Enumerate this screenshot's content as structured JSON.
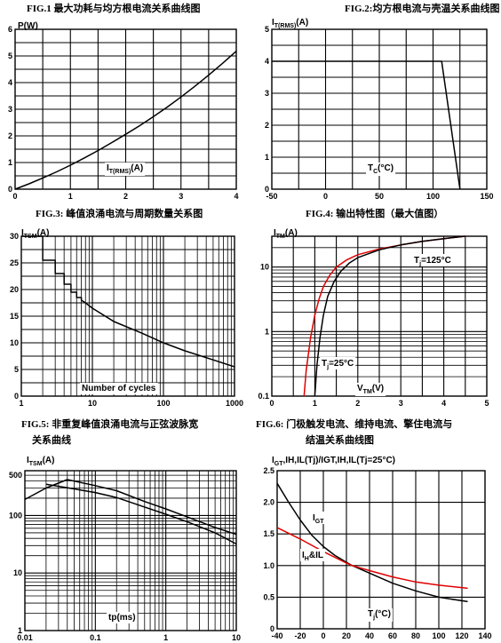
{
  "chart_data": [
    {
      "id": "fig1",
      "type": "line",
      "title": "FIG.1  最大功耗与均方根电流关系曲线图",
      "ylabel": "P(W)",
      "xlabel": "IT(RMS)(A)",
      "ylabel_main": "P",
      "ylabel_sub": "",
      "ylabel_tail": "(W)",
      "xlabel_main": "I",
      "xlabel_sub": "T(RMS)",
      "xlabel_tail": "(A)",
      "xscale": "linear",
      "yscale": "linear",
      "xlim": [
        0,
        4
      ],
      "ylim": [
        0,
        6
      ],
      "xticks": [
        0,
        1,
        2,
        3,
        4
      ],
      "yticks": [
        0,
        1,
        2,
        3,
        4,
        5,
        6
      ],
      "xticklabels": [
        "0",
        "1",
        "2",
        "3",
        "4"
      ],
      "yticklabels": [
        "0",
        "1",
        "2",
        "3",
        "4",
        "5",
        "6"
      ],
      "xgrid": [
        0.5,
        1,
        1.5,
        2,
        2.5,
        3,
        3.5
      ],
      "ygrid": [
        0.5,
        1,
        1.5,
        2,
        2.5,
        3,
        3.5,
        4,
        4.5,
        5,
        5.5
      ],
      "series": [
        {
          "name": "",
          "color": "#000000",
          "x": [
            0,
            0.25,
            0.5,
            0.75,
            1,
            1.25,
            1.5,
            1.75,
            2,
            2.25,
            2.5,
            2.75,
            3,
            3.25,
            3.5,
            3.75,
            4
          ],
          "y": [
            0,
            0.2,
            0.42,
            0.65,
            0.9,
            1.17,
            1.45,
            1.75,
            2.06,
            2.38,
            2.72,
            3.08,
            3.46,
            3.86,
            4.28,
            4.72,
            5.18
          ]
        }
      ]
    },
    {
      "id": "fig2",
      "type": "line",
      "title": "FIG.2:均方根电流与壳温关系曲线图",
      "ylabel": "IT(RMS)(A)",
      "xlabel": "TC(°C)",
      "ylabel_main": "I",
      "ylabel_sub": "T(RMS)",
      "ylabel_tail": "(A)",
      "xlabel_main": "T",
      "xlabel_sub": "C",
      "xlabel_tail": "(°C)",
      "xscale": "linear",
      "yscale": "linear",
      "xlim": [
        -50,
        150
      ],
      "ylim": [
        0,
        5
      ],
      "xticks": [
        -50,
        0,
        50,
        100,
        150
      ],
      "yticks": [
        0,
        1,
        2,
        3,
        4,
        5
      ],
      "xticklabels": [
        "-50",
        "0",
        "50",
        "100",
        "150"
      ],
      "yticklabels": [
        "0",
        "1",
        "2",
        "3",
        "4",
        "5"
      ],
      "xgrid": [
        -25,
        0,
        25,
        50,
        75,
        100,
        125
      ],
      "ygrid": [
        0.5,
        1,
        1.5,
        2,
        2.5,
        3,
        3.5,
        4,
        4.5
      ],
      "series": [
        {
          "name": "",
          "color": "#000000",
          "x": [
            -50,
            108,
            125
          ],
          "y": [
            4,
            4,
            0
          ]
        }
      ]
    },
    {
      "id": "fig3",
      "type": "line",
      "title": "FIG.3:  峰值浪涌电流与周期数量关系图",
      "ylabel": "ITSM(A)",
      "xlabel": "Number of cycles",
      "ylabel_main": "I",
      "ylabel_sub": "TSM",
      "ylabel_tail": "(A)",
      "xlabel_main": "Number of cycles",
      "xlabel_sub": "",
      "xlabel_tail": "",
      "xscale": "log",
      "yscale": "linear",
      "xlim": [
        1,
        1000
      ],
      "ylim": [
        0,
        30
      ],
      "xticks": [
        1,
        10,
        100,
        1000
      ],
      "yticks": [
        0,
        5,
        10,
        15,
        20,
        25,
        30
      ],
      "xticklabels": [
        "1",
        "10",
        "100",
        "1000"
      ],
      "yticklabels": [
        "0",
        "5",
        "10",
        "15",
        "20",
        "25",
        "30"
      ],
      "xgrid": "log-decades",
      "ygrid": [
        2.5,
        5,
        7.5,
        10,
        12.5,
        15,
        17.5,
        20,
        22.5,
        25,
        27.5
      ],
      "series": [
        {
          "name": "",
          "color": "#000000",
          "x": [
            1,
            2,
            2,
            3,
            3,
            4,
            4,
            5,
            5,
            6,
            6,
            7,
            7,
            8,
            10,
            20,
            50,
            100,
            200,
            500,
            1000
          ],
          "y": [
            30,
            30,
            25.5,
            25.5,
            23,
            23,
            21,
            21,
            19.5,
            19.5,
            18.5,
            18.5,
            18,
            17.5,
            16.5,
            14,
            11.8,
            10,
            8.5,
            6.8,
            5.5
          ]
        }
      ]
    },
    {
      "id": "fig4",
      "type": "line",
      "title": "FIG.4:  输出特性图（最大值图）",
      "ylabel": "ITM(A)",
      "xlabel": "VTM(V)",
      "ylabel_main": "I",
      "ylabel_sub": "TM",
      "ylabel_tail": "(A)",
      "xlabel_main": "V",
      "xlabel_sub": "TM",
      "xlabel_tail": "(V)",
      "xscale": "linear",
      "yscale": "log",
      "xlim": [
        0,
        5
      ],
      "ylim": [
        0.1,
        30
      ],
      "xticks": [
        0,
        1,
        2,
        3,
        4,
        5
      ],
      "yticks": [
        0.1,
        1,
        10
      ],
      "xticklabels": [
        "0",
        "1",
        "2",
        "3",
        "4",
        "5"
      ],
      "yticklabels": [
        "0.1",
        "1",
        "10"
      ],
      "xgrid": [
        0.5,
        1,
        1.5,
        2,
        2.5,
        3,
        3.5,
        4,
        4.5
      ],
      "ygrid": "log-decades",
      "annotations": [
        {
          "text": "Tj=125°C",
          "main": "T",
          "sub": "j",
          "tail": "=125°C"
        },
        {
          "text": "Tj=25°C",
          "main": "T",
          "sub": "j",
          "tail": "=25°C"
        }
      ],
      "series": [
        {
          "name": "Tj=125°C",
          "color": "#e00000",
          "x": [
            0.75,
            0.8,
            0.9,
            1,
            1.1,
            1.2,
            1.35,
            1.5,
            1.75,
            2,
            2.5,
            3,
            3.5,
            4,
            4.5
          ],
          "y": [
            0.1,
            0.25,
            0.8,
            1.8,
            3.2,
            5,
            7.5,
            10,
            13,
            15.5,
            19,
            22,
            25,
            27.5,
            30
          ]
        },
        {
          "name": "Tj=25°C",
          "color": "#000000",
          "x": [
            1.0,
            1.05,
            1.12,
            1.2,
            1.3,
            1.45,
            1.6,
            1.8,
            2,
            2.5,
            3,
            3.5,
            4,
            4.5
          ],
          "y": [
            0.1,
            0.3,
            0.8,
            1.8,
            3.5,
            6,
            8.5,
            11.5,
            14,
            18.5,
            22,
            25,
            27.5,
            30
          ]
        }
      ]
    },
    {
      "id": "fig5",
      "type": "line",
      "title": "FIG.5:  非重复峰值浪涌电流与正弦波脉宽",
      "title2": "关系曲线",
      "ylabel": "ITSM(A)",
      "xlabel": "tp(ms)",
      "ylabel_main": "I",
      "ylabel_sub": "TSM",
      "ylabel_tail": "(A)",
      "xlabel_main": "tp(ms)",
      "xlabel_sub": "",
      "xlabel_tail": "",
      "xscale": "log",
      "yscale": "log",
      "xlim": [
        0.01,
        10
      ],
      "ylim": [
        1,
        600
      ],
      "xticks": [
        0.01,
        0.1,
        1,
        10
      ],
      "yticks": [
        1,
        10,
        100,
        500
      ],
      "xticklabels": [
        "0.01",
        "0.1",
        "1",
        "10"
      ],
      "yticklabels": [
        "1",
        "10",
        "100",
        "500"
      ],
      "xgrid": "log-decades",
      "ygrid": "log-decades",
      "series": [
        {
          "name": "",
          "color": "#000000",
          "x": [
            0.01,
            0.02,
            0.04,
            0.1,
            0.2,
            0.5,
            1,
            2,
            5,
            10
          ],
          "y": [
            190,
            300,
            420,
            330,
            270,
            175,
            130,
            95,
            62,
            47
          ]
        },
        {
          "name": "",
          "color": "#000000",
          "x": [
            0.02,
            0.05,
            0.1,
            0.2,
            0.5,
            1,
            2,
            5,
            10
          ],
          "y": [
            350,
            290,
            250,
            205,
            140,
            105,
            78,
            50,
            32
          ]
        }
      ]
    },
    {
      "id": "fig6",
      "type": "line",
      "title": "FIG.6:  门极触发电流、维持电流、擎住电流与",
      "title2": "结温关系曲线图",
      "ylabel": "IGT,IH,IL(Tj)/IGT,IH,IL(Tj=25°C)",
      "xlabel": "Tj(°C)",
      "ylabel_main": "I",
      "ylabel_sub": "GT",
      "ylabel_tail": ",IH,IL(Tj)/IGT,IH,IL(Tj=25°C)",
      "xlabel_main": "T",
      "xlabel_sub": "j",
      "xlabel_tail": "(°C)",
      "xscale": "linear",
      "yscale": "linear",
      "xlim": [
        -40,
        140
      ],
      "ylim": [
        0,
        2.5
      ],
      "xticks": [
        -40,
        -20,
        0,
        20,
        40,
        60,
        80,
        100,
        120,
        140
      ],
      "yticks": [
        0,
        0.5,
        1,
        1.5,
        2,
        2.5
      ],
      "xticklabels": [
        "-40",
        "-20",
        "0",
        "20",
        "40",
        "60",
        "80",
        "100",
        "120",
        "140"
      ],
      "yticklabels": [
        "0",
        "0.5",
        "1.0",
        "1.5",
        "2.0",
        "2.5"
      ],
      "xgrid": [
        -20,
        0,
        20,
        40,
        60,
        80,
        100,
        120
      ],
      "ygrid": [
        0.5,
        1,
        1.5,
        2
      ],
      "annotations": [
        {
          "text": "IGT",
          "main": "I",
          "sub": "GT",
          "tail": ""
        },
        {
          "text": "IH&IL",
          "main": "I",
          "sub": "H",
          "tail": "&IL"
        }
      ],
      "series": [
        {
          "name": "IGT",
          "color": "#000000",
          "x": [
            -40,
            -30,
            -20,
            -10,
            0,
            10,
            20,
            25,
            40,
            60,
            80,
            100,
            125
          ],
          "y": [
            2.3,
            2.0,
            1.72,
            1.48,
            1.3,
            1.16,
            1.05,
            1.0,
            0.88,
            0.72,
            0.6,
            0.5,
            0.43
          ]
        },
        {
          "name": "IH&IL",
          "color": "#e00000",
          "x": [
            -40,
            -20,
            0,
            20,
            25,
            40,
            60,
            80,
            100,
            125
          ],
          "y": [
            1.6,
            1.42,
            1.22,
            1.04,
            1.0,
            0.92,
            0.82,
            0.74,
            0.69,
            0.64
          ]
        }
      ]
    }
  ]
}
